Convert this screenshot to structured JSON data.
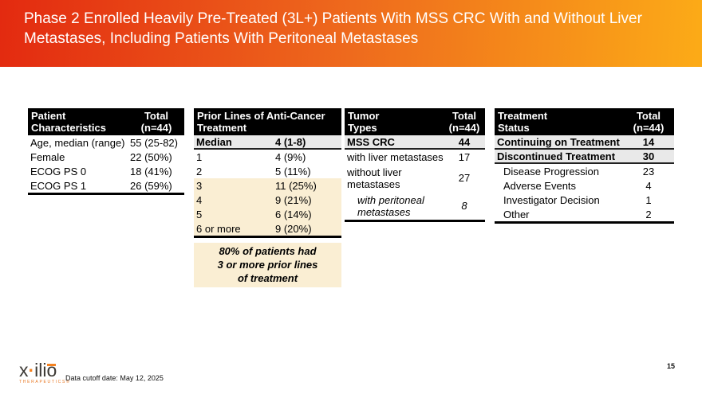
{
  "header": {
    "title": "Phase 2 Enrolled Heavily Pre-Treated (3L+) Patients With MSS CRC With and Without Liver\nMetastases, Including Patients With Peritoneal Metastases"
  },
  "colors": {
    "banner_gradient_left": "#e32a10",
    "banner_gradient_mid": "#ee6a1d",
    "banner_gradient_right": "#fcab17",
    "table_header_bg": "#000000",
    "subheader_row_bg": "#e9e9e9",
    "highlight_bg": "#faeed3",
    "logo_accent": "#f58220"
  },
  "tables": {
    "patient": {
      "header": {
        "label": "Patient\nCharacteristics",
        "total": "Total\n(n=44)"
      },
      "rows": [
        {
          "label": "Age, median (range)",
          "value": "55 (25-82)"
        },
        {
          "label": "Female",
          "value": "22 (50%)"
        },
        {
          "label": "ECOG PS 0",
          "value": "18 (41%)"
        },
        {
          "label": "ECOG PS 1",
          "value": "26 (59%)"
        }
      ]
    },
    "prior": {
      "header": {
        "label": "Prior Lines of Anti-Cancer\nTreatment"
      },
      "rows": [
        {
          "label": "Median",
          "value": "4 (1-8)"
        },
        {
          "label": "1",
          "value": "4 (9%)"
        },
        {
          "label": "2",
          "value": "5 (11%)"
        },
        {
          "label": "3",
          "value": "11 (25%)"
        },
        {
          "label": "4",
          "value": "9 (21%)"
        },
        {
          "label": "5",
          "value": "6 (14%)"
        },
        {
          "label": "6 or more",
          "value": "9 (20%)"
        }
      ],
      "note": "80% of patients had\n3 or more prior lines\nof treatment"
    },
    "tumor": {
      "header": {
        "label": "Tumor\nTypes",
        "total": "Total\n(n=44)"
      },
      "rows": [
        {
          "label": "MSS CRC",
          "value": "44"
        },
        {
          "label": "with liver metastases",
          "value": "17"
        },
        {
          "label": "without liver\nmetastases",
          "value": "27"
        },
        {
          "label": "with peritoneal\nmetastases",
          "value": "8"
        }
      ]
    },
    "treatment": {
      "header": {
        "label": "Treatment\nStatus",
        "total": "Total\n(n=44)"
      },
      "rows": [
        {
          "label": "Continuing on Treatment",
          "value": "14"
        },
        {
          "label": "Discontinued Treatment",
          "value": "30"
        },
        {
          "label": "Disease Progression",
          "value": "23"
        },
        {
          "label": "Adverse Events",
          "value": "4"
        },
        {
          "label": "Investigator Decision",
          "value": "1"
        },
        {
          "label": "Other",
          "value": "2"
        }
      ]
    }
  },
  "footer": {
    "logo": {
      "x": "x",
      "dot": "·",
      "ili": "ili",
      "o": "o",
      "sub": "THERAPEUTICS®"
    },
    "cutoff": "Data cutoff date: May 12, 2025",
    "page": "15"
  }
}
